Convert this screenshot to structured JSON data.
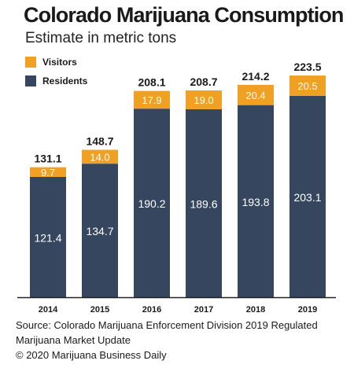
{
  "chart_data": {
    "type": "bar",
    "stacked": true,
    "title": "Colorado Marijuana Consumption",
    "subtitle": "Estimate in metric tons",
    "categories": [
      "2014",
      "2015",
      "2016",
      "2017",
      "2018",
      "2019"
    ],
    "series": [
      {
        "name": "Residents",
        "values": [
          121.4,
          134.7,
          190.2,
          189.6,
          193.8,
          203.1
        ]
      },
      {
        "name": "Visitors",
        "values": [
          9.7,
          14.0,
          17.9,
          19.0,
          20.4,
          20.5
        ]
      }
    ],
    "totals": [
      "131.1",
      "148.7",
      "208.1",
      "208.7",
      "214.2",
      "223.5"
    ],
    "series_labels": [
      [
        "121.4",
        "134.7",
        "190.2",
        "189.6",
        "193.8",
        "203.1"
      ],
      [
        "9.7",
        "14.0",
        "17.9",
        "19.0",
        "20.4",
        "20.5"
      ]
    ],
    "ylim": [
      0,
      230
    ],
    "legend": [
      "Visitors",
      "Residents"
    ],
    "legend_position": "top-left",
    "grid": false
  },
  "colors": {
    "residents": "#35465e",
    "visitors": "#f0a023",
    "axis": "#222222",
    "text_dark": "#1a1a1a",
    "text_light": "#ffffff"
  },
  "source": {
    "line1": "Source: Colorado Marijuana Enforcement Division 2019 Regulated",
    "line2": "Marijuana Market Update",
    "line3": "© 2020 Marijuana Business Daily"
  }
}
